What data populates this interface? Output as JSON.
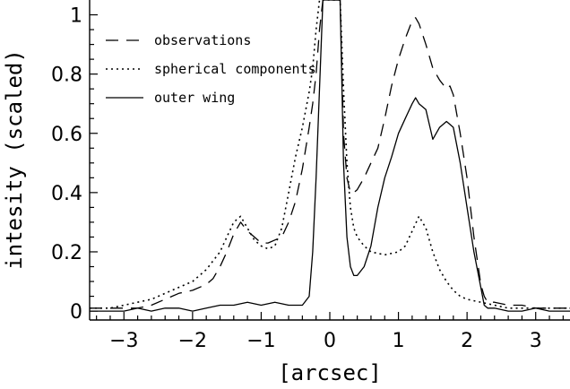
{
  "chart_data": {
    "type": "line",
    "title": "",
    "xlabel": "[arcsec]",
    "ylabel": "intesity (scaled)",
    "xlim": [
      -3.5,
      3.5
    ],
    "ylim": [
      -0.03,
      1.05
    ],
    "x_ticks": [
      -3,
      -2,
      -1,
      0,
      1,
      2,
      3
    ],
    "x_tick_labels": [
      "−3",
      "−2",
      "−1",
      "0",
      "1",
      "2",
      "3"
    ],
    "y_ticks": [
      0,
      0.2,
      0.4,
      0.6,
      0.8,
      1
    ],
    "y_tick_labels": [
      "0",
      "0.2",
      "0.4",
      "0.6",
      "0.8",
      "1"
    ],
    "grid": false,
    "legend_position": "top-center",
    "series": [
      {
        "name": "observations",
        "style": "dashed",
        "color": "#000000",
        "x": [
          -3.5,
          -3.2,
          -3.0,
          -2.8,
          -2.6,
          -2.4,
          -2.2,
          -2.0,
          -1.8,
          -1.7,
          -1.6,
          -1.5,
          -1.4,
          -1.3,
          -1.2,
          -1.1,
          -1.0,
          -0.9,
          -0.8,
          -0.7,
          -0.6,
          -0.5,
          -0.4,
          -0.3,
          -0.25,
          -0.2,
          -0.15,
          -0.1,
          -0.05,
          0.0,
          0.05,
          0.1,
          0.15,
          0.2,
          0.25,
          0.3,
          0.35,
          0.4,
          0.5,
          0.6,
          0.7,
          0.8,
          0.9,
          1.0,
          1.1,
          1.2,
          1.25,
          1.3,
          1.4,
          1.5,
          1.6,
          1.7,
          1.75,
          1.8,
          1.9,
          2.0,
          2.1,
          2.2,
          2.25,
          2.3,
          2.4,
          2.6,
          2.8,
          3.0,
          3.2,
          3.5
        ],
        "y": [
          0.01,
          0.01,
          0.01,
          0.01,
          0.02,
          0.04,
          0.06,
          0.07,
          0.09,
          0.11,
          0.15,
          0.2,
          0.26,
          0.3,
          0.27,
          0.25,
          0.23,
          0.23,
          0.24,
          0.25,
          0.3,
          0.37,
          0.48,
          0.62,
          0.7,
          0.8,
          0.95,
          1.05,
          1.05,
          1.05,
          1.05,
          1.05,
          1.05,
          0.6,
          0.45,
          0.4,
          0.4,
          0.41,
          0.45,
          0.5,
          0.55,
          0.65,
          0.76,
          0.85,
          0.92,
          0.98,
          0.99,
          0.97,
          0.9,
          0.82,
          0.78,
          0.75,
          0.76,
          0.73,
          0.6,
          0.45,
          0.25,
          0.09,
          0.05,
          0.03,
          0.03,
          0.02,
          0.02,
          0.01,
          0.01,
          0.01
        ]
      },
      {
        "name": "spherical components",
        "style": "dotted",
        "color": "#000000",
        "x": [
          -3.5,
          -3.2,
          -3.0,
          -2.8,
          -2.6,
          -2.4,
          -2.2,
          -2.0,
          -1.8,
          -1.6,
          -1.5,
          -1.4,
          -1.3,
          -1.2,
          -1.1,
          -1.0,
          -0.9,
          -0.8,
          -0.7,
          -0.6,
          -0.5,
          -0.4,
          -0.3,
          -0.25,
          -0.2,
          -0.15,
          -0.1,
          -0.05,
          0.0,
          0.05,
          0.1,
          0.15,
          0.2,
          0.25,
          0.3,
          0.35,
          0.4,
          0.5,
          0.6,
          0.8,
          1.0,
          1.1,
          1.2,
          1.3,
          1.4,
          1.5,
          1.6,
          1.7,
          1.8,
          1.9,
          2.0,
          2.2,
          2.4,
          2.6,
          2.8,
          3.0,
          3.2,
          3.5
        ],
        "y": [
          0.01,
          0.01,
          0.02,
          0.03,
          0.04,
          0.06,
          0.08,
          0.1,
          0.14,
          0.2,
          0.25,
          0.3,
          0.32,
          0.28,
          0.24,
          0.22,
          0.21,
          0.22,
          0.28,
          0.4,
          0.52,
          0.62,
          0.74,
          0.82,
          0.95,
          1.05,
          1.05,
          1.05,
          1.05,
          1.05,
          1.05,
          1.05,
          0.75,
          0.5,
          0.35,
          0.28,
          0.25,
          0.22,
          0.2,
          0.19,
          0.2,
          0.22,
          0.27,
          0.32,
          0.28,
          0.2,
          0.14,
          0.1,
          0.07,
          0.05,
          0.04,
          0.03,
          0.02,
          0.01,
          0.01,
          0.01,
          0.01,
          0.01
        ]
      },
      {
        "name": "outer wing",
        "style": "solid",
        "color": "#000000",
        "x": [
          -3.5,
          -3.2,
          -3.0,
          -2.8,
          -2.6,
          -2.4,
          -2.2,
          -2.0,
          -1.8,
          -1.6,
          -1.4,
          -1.2,
          -1.0,
          -0.8,
          -0.6,
          -0.4,
          -0.3,
          -0.25,
          -0.2,
          -0.15,
          -0.1,
          -0.08,
          -0.05,
          0.0,
          0.05,
          0.1,
          0.15,
          0.2,
          0.25,
          0.3,
          0.35,
          0.4,
          0.5,
          0.6,
          0.7,
          0.8,
          0.9,
          1.0,
          1.1,
          1.2,
          1.25,
          1.3,
          1.4,
          1.5,
          1.6,
          1.7,
          1.75,
          1.8,
          1.9,
          2.0,
          2.1,
          2.2,
          2.25,
          2.3,
          2.4,
          2.6,
          2.8,
          3.0,
          3.2,
          3.5
        ],
        "y": [
          0.0,
          0.0,
          0.0,
          0.01,
          0.0,
          0.01,
          0.01,
          0.0,
          0.01,
          0.02,
          0.02,
          0.03,
          0.02,
          0.03,
          0.02,
          0.02,
          0.05,
          0.2,
          0.45,
          0.75,
          1.05,
          1.05,
          1.05,
          1.05,
          1.05,
          1.05,
          1.05,
          0.5,
          0.25,
          0.15,
          0.12,
          0.12,
          0.15,
          0.22,
          0.35,
          0.45,
          0.52,
          0.6,
          0.65,
          0.7,
          0.72,
          0.7,
          0.68,
          0.58,
          0.62,
          0.64,
          0.63,
          0.62,
          0.5,
          0.35,
          0.2,
          0.08,
          0.02,
          0.01,
          0.01,
          0.0,
          0.0,
          0.01,
          0.0,
          0.0
        ]
      }
    ]
  }
}
